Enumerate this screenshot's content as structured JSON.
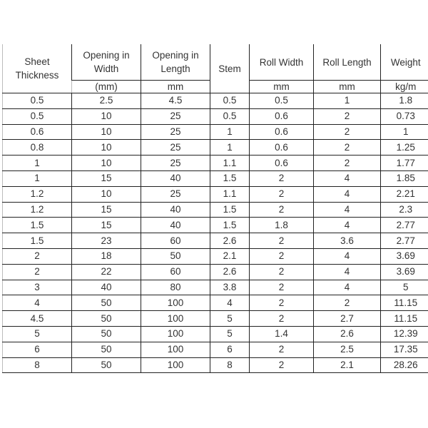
{
  "headers": {
    "sheet_thickness": "Sheet Thickness",
    "opening_width": "Opening in Width",
    "opening_length": "Opening in Length",
    "stem": "Stem",
    "roll_width": "Roll Width",
    "roll_length": "Roll Length",
    "weight": "Weight"
  },
  "units": {
    "opening_width": "(mm)",
    "opening_length": "mm",
    "roll_width": "mm",
    "roll_length": "mm",
    "weight": "kg/m"
  },
  "rows": [
    [
      "0.5",
      "2.5",
      "4.5",
      "0.5",
      "0.5",
      "1",
      "1.8"
    ],
    [
      "0.5",
      "10",
      "25",
      "0.5",
      "0.6",
      "2",
      "0.73"
    ],
    [
      "0.6",
      "10",
      "25",
      "1",
      "0.6",
      "2",
      "1"
    ],
    [
      "0.8",
      "10",
      "25",
      "1",
      "0.6",
      "2",
      "1.25"
    ],
    [
      "1",
      "10",
      "25",
      "1.1",
      "0.6",
      "2",
      "1.77"
    ],
    [
      "1",
      "15",
      "40",
      "1.5",
      "2",
      "4",
      "1.85"
    ],
    [
      "1.2",
      "10",
      "25",
      "1.1",
      "2",
      "4",
      "2.21"
    ],
    [
      "1.2",
      "15",
      "40",
      "1.5",
      "2",
      "4",
      "2.3"
    ],
    [
      "1.5",
      "15",
      "40",
      "1.5",
      "1.8",
      "4",
      "2.77"
    ],
    [
      "1.5",
      "23",
      "60",
      "2.6",
      "2",
      "3.6",
      "2.77"
    ],
    [
      "2",
      "18",
      "50",
      "2.1",
      "2",
      "4",
      "3.69"
    ],
    [
      "2",
      "22",
      "60",
      "2.6",
      "2",
      "4",
      "3.69"
    ],
    [
      "3",
      "40",
      "80",
      "3.8",
      "2",
      "4",
      "5"
    ],
    [
      "4",
      "50",
      "100",
      "4",
      "2",
      "2",
      "11.15"
    ],
    [
      "4.5",
      "50",
      "100",
      "5",
      "2",
      "2.7",
      "11.15"
    ],
    [
      "5",
      "50",
      "100",
      "5",
      "1.4",
      "2.6",
      "12.39"
    ],
    [
      "6",
      "50",
      "100",
      "6",
      "2",
      "2.5",
      "17.35"
    ],
    [
      "8",
      "50",
      "100",
      "8",
      "2",
      "2.1",
      "28.26"
    ]
  ]
}
